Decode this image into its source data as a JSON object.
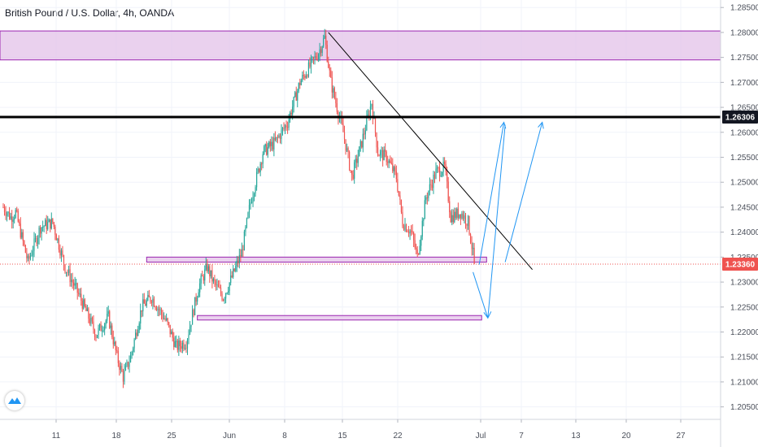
{
  "header": {
    "title": "British Pound / U.S. Dollar, 4h, OANDA"
  },
  "colors": {
    "up": "#26a69a",
    "down": "#ef5350",
    "zone_fill": "#e1bee7",
    "zone_stroke": "#9c27b0",
    "projection": "#2196f3",
    "price_badge": "#ef5350",
    "level_badge": "#131722"
  },
  "chart_data": {
    "type": "candlestick",
    "symbol": "GBPUSD",
    "timeframe": "4h",
    "ylim": [
      1.2025,
      1.2865
    ],
    "y_ticks": [
      "1.28500",
      "1.28000",
      "1.27500",
      "1.27000",
      "1.26500",
      "1.26000",
      "1.25500",
      "1.25000",
      "1.24500",
      "1.24000",
      "1.23500",
      "1.23000",
      "1.22500",
      "1.22000",
      "1.21500",
      "1.21000",
      "1.20500"
    ],
    "x_ticks": [
      "11",
      "18",
      "25",
      "Jun",
      "8",
      "15",
      "22",
      "Jul",
      "7",
      "13",
      "20",
      "27"
    ],
    "current_price": "1.23360",
    "level_price": "1.26306",
    "anchors": [
      {
        "t": 0,
        "p": 1.245
      },
      {
        "t": 6,
        "p": 1.243
      },
      {
        "t": 10,
        "p": 1.244
      },
      {
        "t": 20,
        "p": 1.234
      },
      {
        "t": 30,
        "p": 1.241
      },
      {
        "t": 40,
        "p": 1.242
      },
      {
        "t": 50,
        "p": 1.233
      },
      {
        "t": 62,
        "p": 1.227
      },
      {
        "t": 75,
        "p": 1.2195
      },
      {
        "t": 85,
        "p": 1.223
      },
      {
        "t": 92,
        "p": 1.215
      },
      {
        "t": 97,
        "p": 1.211
      },
      {
        "t": 103,
        "p": 1.215
      },
      {
        "t": 112,
        "p": 1.225
      },
      {
        "t": 120,
        "p": 1.227
      },
      {
        "t": 132,
        "p": 1.222
      },
      {
        "t": 140,
        "p": 1.217
      },
      {
        "t": 148,
        "p": 1.218
      },
      {
        "t": 158,
        "p": 1.229
      },
      {
        "t": 165,
        "p": 1.233
      },
      {
        "t": 170,
        "p": 1.23
      },
      {
        "t": 178,
        "p": 1.227
      },
      {
        "t": 185,
        "p": 1.231
      },
      {
        "t": 193,
        "p": 1.236
      },
      {
        "t": 200,
        "p": 1.246
      },
      {
        "t": 210,
        "p": 1.256
      },
      {
        "t": 220,
        "p": 1.258
      },
      {
        "t": 230,
        "p": 1.262
      },
      {
        "t": 240,
        "p": 1.27
      },
      {
        "t": 250,
        "p": 1.274
      },
      {
        "t": 255,
        "p": 1.276
      },
      {
        "t": 260,
        "p": 1.279
      },
      {
        "t": 265,
        "p": 1.27
      },
      {
        "t": 275,
        "p": 1.26
      },
      {
        "t": 282,
        "p": 1.251
      },
      {
        "t": 290,
        "p": 1.258
      },
      {
        "t": 298,
        "p": 1.266
      },
      {
        "t": 303,
        "p": 1.256
      },
      {
        "t": 310,
        "p": 1.255
      },
      {
        "t": 318,
        "p": 1.251
      },
      {
        "t": 323,
        "p": 1.242
      },
      {
        "t": 330,
        "p": 1.24
      },
      {
        "t": 335,
        "p": 1.235
      },
      {
        "t": 342,
        "p": 1.247
      },
      {
        "t": 350,
        "p": 1.252
      },
      {
        "t": 357,
        "p": 1.253
      },
      {
        "t": 362,
        "p": 1.243
      },
      {
        "t": 370,
        "p": 1.244
      },
      {
        "t": 376,
        "p": 1.242
      },
      {
        "t": 381,
        "p": 1.234
      }
    ],
    "annotations": {
      "resistance_zone": [
        1.2745,
        1.2803
      ],
      "horizontal_level": 1.26306,
      "support_zone_mid": [
        1.234,
        1.235
      ],
      "support_zone_low": [
        1.2224,
        1.2233
      ],
      "trendline": {
        "from": {
          "t": 263,
          "p": 1.28
        },
        "to": {
          "t": 428,
          "p": 1.2325
        }
      },
      "projection_path": [
        {
          "t": 380,
          "p": 1.232
        },
        {
          "t": 392,
          "p": 1.2228
        },
        {
          "t": 406,
          "p": 1.2615
        }
      ],
      "projection_arrow_1": {
        "from": {
          "t": 385,
          "p": 1.2335
        },
        "to": {
          "t": 405,
          "p": 1.262
        }
      },
      "projection_arrow_2": {
        "from": {
          "t": 406,
          "p": 1.234
        },
        "to": {
          "t": 436,
          "p": 1.262
        }
      }
    }
  }
}
